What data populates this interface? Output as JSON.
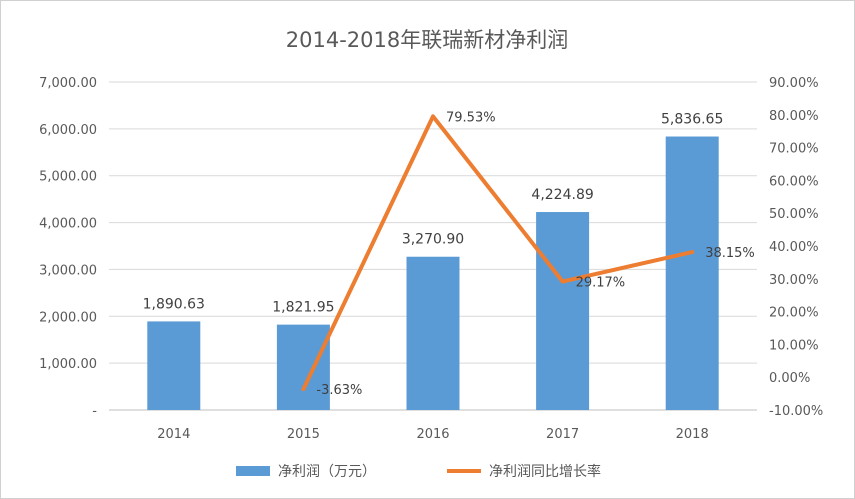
{
  "chart_data": {
    "type": "bar",
    "title": "2014-2018年联瑞新材净利润",
    "categories": [
      "2014",
      "2015",
      "2016",
      "2017",
      "2018"
    ],
    "series": [
      {
        "name": "净利润（万元）",
        "type": "bar",
        "axis": "left",
        "color": "#5B9BD5",
        "values": [
          1890.63,
          1821.95,
          3270.9,
          4224.89,
          5836.65
        ],
        "labels": [
          "1,890.63",
          "1,821.95",
          "3,270.90",
          "4,224.89",
          "5,836.65"
        ]
      },
      {
        "name": "净利润同比增长率",
        "type": "line",
        "axis": "right",
        "color": "#ED7D31",
        "values": [
          null,
          -3.63,
          79.53,
          29.17,
          38.15
        ],
        "labels": [
          "",
          "-3.63%",
          "79.53%",
          "29.17%",
          "38.15%"
        ]
      }
    ],
    "y_left": {
      "range": [
        0,
        7000
      ],
      "ticks": [
        0,
        1000,
        2000,
        3000,
        4000,
        5000,
        6000,
        7000
      ],
      "tick_labels": [
        "-",
        "1,000.00",
        "2,000.00",
        "3,000.00",
        "4,000.00",
        "5,000.00",
        "6,000.00",
        "7,000.00"
      ]
    },
    "y_right": {
      "range": [
        -10,
        90
      ],
      "ticks": [
        -10,
        0,
        10,
        20,
        30,
        40,
        50,
        60,
        70,
        80,
        90
      ],
      "tick_labels": [
        "-10.00%",
        "0.00%",
        "10.00%",
        "20.00%",
        "30.00%",
        "40.00%",
        "50.00%",
        "60.00%",
        "70.00%",
        "80.00%",
        "90.00%"
      ]
    },
    "grid": true,
    "legend_position": "bottom"
  }
}
